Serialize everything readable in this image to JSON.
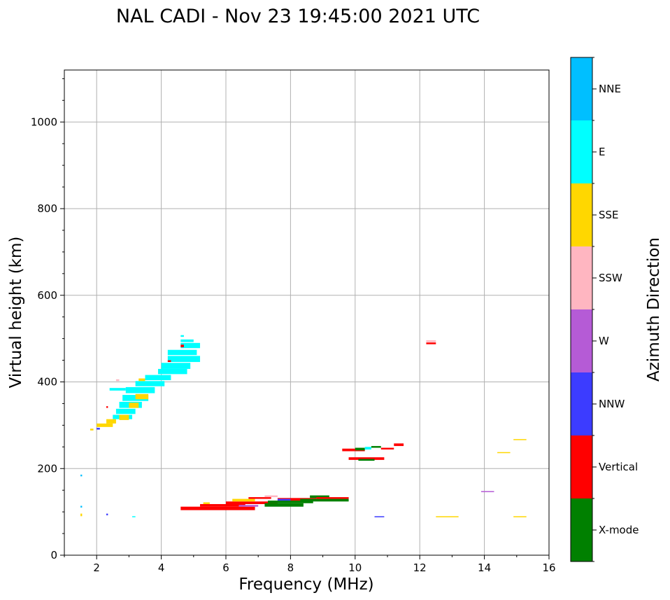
{
  "chart_data": {
    "type": "scatter",
    "title": "NAL CADI - Nov 23 19:45:00 2021 UTC",
    "xlabel": "Frequency (MHz)",
    "ylabel": "Virtual height (km)",
    "xlim": [
      1,
      16
    ],
    "ylim": [
      0,
      1120
    ],
    "xticks": [
      2,
      4,
      6,
      8,
      10,
      12,
      14,
      16
    ],
    "yticks": [
      0,
      200,
      400,
      600,
      800,
      1000
    ],
    "grid": true,
    "colorbar": {
      "label": "Azimuth Direction",
      "categories": [
        {
          "name": "X-mode",
          "color": "#008000"
        },
        {
          "name": "Vertical",
          "color": "#ff0000"
        },
        {
          "name": "NNW",
          "color": "#3c3cff"
        },
        {
          "name": "W",
          "color": "#b55bd6"
        },
        {
          "name": "SSW",
          "color": "#ffb6c1"
        },
        {
          "name": "SSE",
          "color": "#ffd700"
        },
        {
          "name": "E",
          "color": "#00ffff"
        },
        {
          "name": "NNE",
          "color": "#00bfff"
        }
      ]
    },
    "echoes": [
      {
        "cat": "E",
        "f0": 4.6,
        "f1": 4.7,
        "h0": 504,
        "h1": 508
      },
      {
        "cat": "E",
        "f0": 4.6,
        "f1": 5.0,
        "h0": 492,
        "h1": 498
      },
      {
        "cat": "E",
        "f0": 4.6,
        "f1": 5.2,
        "h0": 478,
        "h1": 490
      },
      {
        "cat": "E",
        "f0": 4.2,
        "f1": 5.1,
        "h0": 462,
        "h1": 474
      },
      {
        "cat": "E",
        "f0": 4.2,
        "f1": 5.2,
        "h0": 446,
        "h1": 460
      },
      {
        "cat": "E",
        "f0": 4.0,
        "f1": 4.9,
        "h0": 430,
        "h1": 444
      },
      {
        "cat": "E",
        "f0": 3.9,
        "f1": 4.8,
        "h0": 418,
        "h1": 430
      },
      {
        "cat": "E",
        "f0": 3.5,
        "f1": 4.3,
        "h0": 404,
        "h1": 416
      },
      {
        "cat": "E",
        "f0": 3.2,
        "f1": 4.1,
        "h0": 390,
        "h1": 402
      },
      {
        "cat": "E",
        "f0": 2.4,
        "f1": 2.9,
        "h0": 380,
        "h1": 386
      },
      {
        "cat": "E",
        "f0": 2.9,
        "f1": 3.8,
        "h0": 374,
        "h1": 388
      },
      {
        "cat": "E",
        "f0": 2.8,
        "f1": 3.6,
        "h0": 356,
        "h1": 370
      },
      {
        "cat": "E",
        "f0": 2.7,
        "f1": 3.4,
        "h0": 340,
        "h1": 354
      },
      {
        "cat": "E",
        "f0": 2.6,
        "f1": 3.2,
        "h0": 326,
        "h1": 338
      },
      {
        "cat": "E",
        "f0": 2.5,
        "f1": 3.1,
        "h0": 314,
        "h1": 324
      },
      {
        "cat": "SSE",
        "f0": 3.2,
        "f1": 3.6,
        "h0": 360,
        "h1": 372
      },
      {
        "cat": "SSE",
        "f0": 3.0,
        "f1": 3.3,
        "h0": 340,
        "h1": 352
      },
      {
        "cat": "SSE",
        "f0": 3.3,
        "f1": 3.5,
        "h0": 402,
        "h1": 408
      },
      {
        "cat": "SSE",
        "f0": 2.7,
        "f1": 3.0,
        "h0": 312,
        "h1": 324
      },
      {
        "cat": "SSE",
        "f0": 2.3,
        "f1": 2.6,
        "h0": 304,
        "h1": 314
      },
      {
        "cat": "SSE",
        "f0": 2.0,
        "f1": 2.5,
        "h0": 296,
        "h1": 304
      },
      {
        "cat": "SSE",
        "f0": 1.8,
        "f1": 1.9,
        "h0": 288,
        "h1": 292
      },
      {
        "cat": "NNW",
        "f0": 2.0,
        "f1": 2.1,
        "h0": 290,
        "h1": 294
      },
      {
        "cat": "Vertical",
        "f0": 2.3,
        "f1": 2.35,
        "h0": 340,
        "h1": 344
      },
      {
        "cat": "Vertical",
        "f0": 4.6,
        "f1": 4.7,
        "h0": 480,
        "h1": 486
      },
      {
        "cat": "Vertical",
        "f0": 4.2,
        "f1": 4.3,
        "h0": 446,
        "h1": 450
      },
      {
        "cat": "SSW",
        "f0": 2.6,
        "f1": 2.7,
        "h0": 402,
        "h1": 406
      },
      {
        "cat": "NNE",
        "f0": 1.5,
        "f1": 1.55,
        "h0": 182,
        "h1": 186
      },
      {
        "cat": "NNE",
        "f0": 1.5,
        "f1": 1.55,
        "h0": 110,
        "h1": 114
      },
      {
        "cat": "SSE",
        "f0": 1.5,
        "f1": 1.55,
        "h0": 90,
        "h1": 96
      },
      {
        "cat": "NNW",
        "f0": 2.3,
        "f1": 2.35,
        "h0": 92,
        "h1": 96
      },
      {
        "cat": "E",
        "f0": 3.1,
        "f1": 3.2,
        "h0": 88,
        "h1": 90
      },
      {
        "cat": "Vertical",
        "f0": 4.6,
        "f1": 6.9,
        "h0": 104,
        "h1": 112
      },
      {
        "cat": "Vertical",
        "f0": 5.2,
        "f1": 6.6,
        "h0": 112,
        "h1": 118
      },
      {
        "cat": "SSE",
        "f0": 5.3,
        "f1": 5.5,
        "h0": 118,
        "h1": 122
      },
      {
        "cat": "Vertical",
        "f0": 6.0,
        "f1": 7.6,
        "h0": 118,
        "h1": 124
      },
      {
        "cat": "W",
        "f0": 6.4,
        "f1": 7.0,
        "h0": 112,
        "h1": 116
      },
      {
        "cat": "SSE",
        "f0": 6.2,
        "f1": 6.9,
        "h0": 124,
        "h1": 130
      },
      {
        "cat": "Vertical",
        "f0": 6.7,
        "f1": 7.4,
        "h0": 130,
        "h1": 134
      },
      {
        "cat": "X-mode",
        "f0": 7.2,
        "f1": 8.4,
        "h0": 112,
        "h1": 120
      },
      {
        "cat": "X-mode",
        "f0": 7.3,
        "f1": 8.7,
        "h0": 120,
        "h1": 126
      },
      {
        "cat": "Vertical",
        "f0": 7.6,
        "f1": 8.8,
        "h0": 126,
        "h1": 132
      },
      {
        "cat": "X-mode",
        "f0": 8.3,
        "f1": 9.8,
        "h0": 124,
        "h1": 130
      },
      {
        "cat": "X-mode",
        "f0": 8.6,
        "f1": 9.2,
        "h0": 132,
        "h1": 138
      },
      {
        "cat": "Vertical",
        "f0": 8.8,
        "f1": 9.8,
        "h0": 130,
        "h1": 134
      },
      {
        "cat": "SSW",
        "f0": 7.2,
        "f1": 7.6,
        "h0": 134,
        "h1": 138
      },
      {
        "cat": "NNW",
        "f0": 7.6,
        "f1": 8.0,
        "h0": 126,
        "h1": 130
      },
      {
        "cat": "Vertical",
        "f0": 9.6,
        "f1": 10.3,
        "h0": 240,
        "h1": 246
      },
      {
        "cat": "X-mode",
        "f0": 10.0,
        "f1": 10.3,
        "h0": 242,
        "h1": 248
      },
      {
        "cat": "E",
        "f0": 10.3,
        "f1": 10.5,
        "h0": 244,
        "h1": 250
      },
      {
        "cat": "X-mode",
        "f0": 10.5,
        "f1": 10.8,
        "h0": 248,
        "h1": 252
      },
      {
        "cat": "Vertical",
        "f0": 10.8,
        "f1": 11.2,
        "h0": 244,
        "h1": 248
      },
      {
        "cat": "Vertical",
        "f0": 11.2,
        "f1": 11.5,
        "h0": 252,
        "h1": 258
      },
      {
        "cat": "Vertical",
        "f0": 9.8,
        "f1": 10.9,
        "h0": 220,
        "h1": 226
      },
      {
        "cat": "X-mode",
        "f0": 10.1,
        "f1": 10.6,
        "h0": 218,
        "h1": 222
      },
      {
        "cat": "SSW",
        "f0": 12.2,
        "f1": 12.5,
        "h0": 492,
        "h1": 496
      },
      {
        "cat": "Vertical",
        "f0": 12.2,
        "f1": 12.5,
        "h0": 487,
        "h1": 491
      },
      {
        "cat": "SSE",
        "f0": 14.9,
        "f1": 15.3,
        "h0": 266,
        "h1": 268
      },
      {
        "cat": "SSE",
        "f0": 14.4,
        "f1": 14.8,
        "h0": 236,
        "h1": 238
      },
      {
        "cat": "W",
        "f0": 13.9,
        "f1": 14.3,
        "h0": 146,
        "h1": 148
      },
      {
        "cat": "NNW",
        "f0": 10.6,
        "f1": 10.9,
        "h0": 88,
        "h1": 90
      },
      {
        "cat": "SSE",
        "f0": 12.5,
        "f1": 13.2,
        "h0": 88,
        "h1": 90
      },
      {
        "cat": "SSE",
        "f0": 14.9,
        "f1": 15.3,
        "h0": 88,
        "h1": 90
      }
    ]
  }
}
